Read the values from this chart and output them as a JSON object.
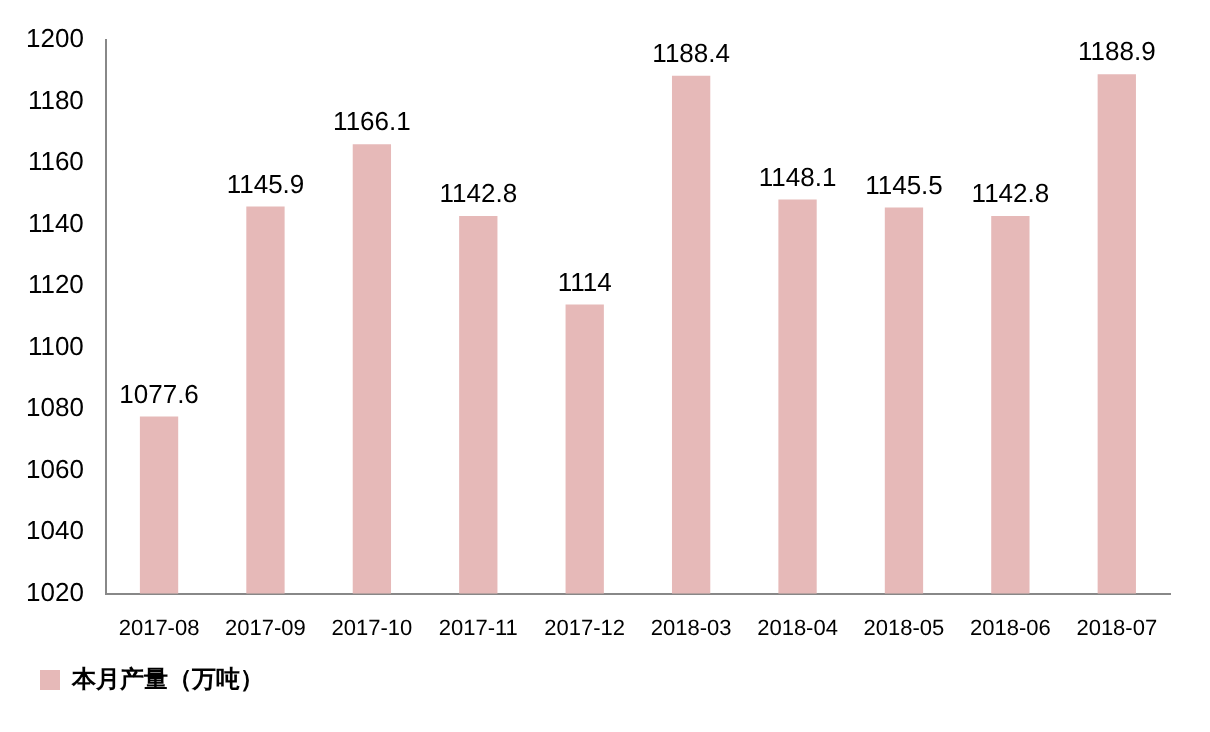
{
  "chart_data": {
    "type": "bar",
    "categories": [
      "2017-08",
      "2017-09",
      "2017-10",
      "2017-11",
      "2017-12",
      "2018-03",
      "2018-04",
      "2018-05",
      "2018-06",
      "2018-07"
    ],
    "series": [
      {
        "name": "本月产量（万吨）",
        "color": "#e6b9b8",
        "values": [
          1077.6,
          1145.9,
          1166.1,
          1142.8,
          1114,
          1188.4,
          1148.1,
          1145.5,
          1142.8,
          1188.9
        ]
      }
    ],
    "ylim": [
      1020,
      1200
    ],
    "yticks": [
      1020,
      1040,
      1060,
      1080,
      1100,
      1120,
      1140,
      1160,
      1180,
      1200
    ],
    "grid": false,
    "legend": "bottom",
    "data_labels": true
  }
}
